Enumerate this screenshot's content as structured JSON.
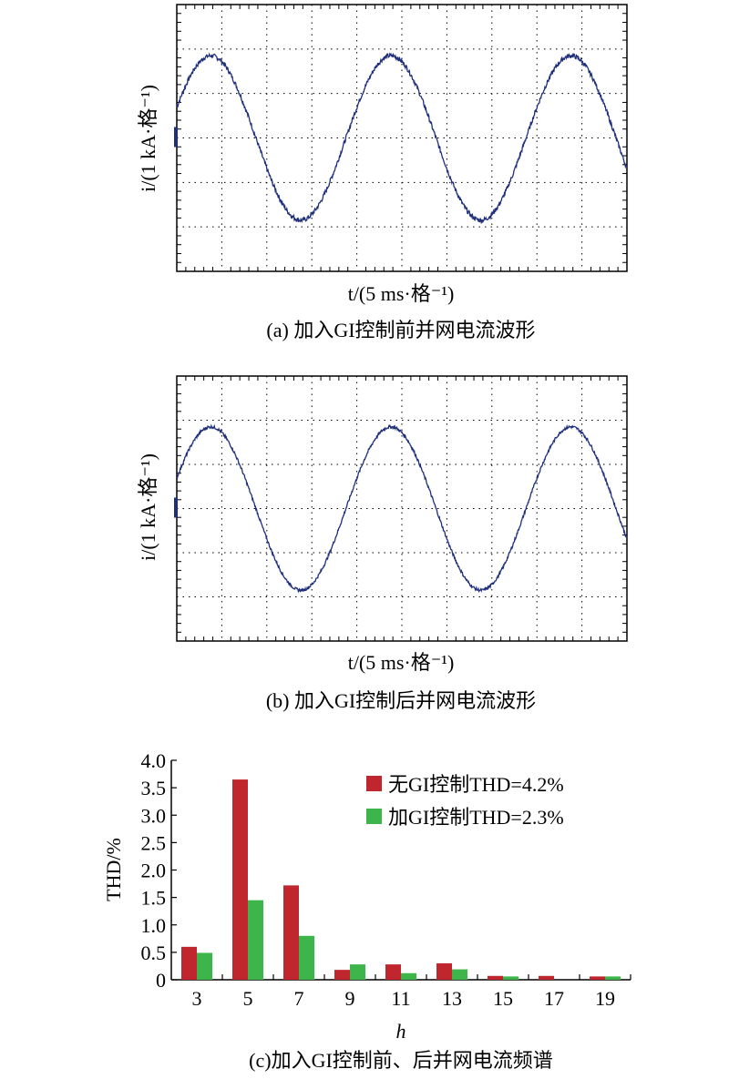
{
  "panels": [
    {
      "id": "a",
      "caption": "(a) 加入GI控制前并网电流波形",
      "xlabel": "t/(5 ms·格⁻¹)",
      "ylabel": "i/(1 kA·格⁻¹)",
      "divisions": {
        "x": 10,
        "y": 6
      },
      "waveform": {
        "cycles": 2.5,
        "amplitude_div": 1.85,
        "noise": "higher"
      },
      "color": "#1f2f7a"
    },
    {
      "id": "b",
      "caption": "(b) 加入GI控制后并网电流波形",
      "xlabel": "t/(5 ms·格⁻¹)",
      "ylabel": "i/(1 kA·格⁻¹)",
      "divisions": {
        "x": 10,
        "y": 6
      },
      "waveform": {
        "cycles": 2.5,
        "amplitude_div": 1.85,
        "noise": "lower"
      },
      "color": "#1f2f7a"
    }
  ],
  "chart_data": [
    {
      "type": "line",
      "xlabel": "t/(5 ms·格⁻¹)",
      "ylabel": "i/(1 kA·格⁻¹)",
      "caption": "(a) 加入GI控制前并网电流波形",
      "grid": true,
      "series": [
        {
          "values_description": "sinusoid, 2.5 cycles across 10 divisions, peak ≈ 1.85 div, visible ripple"
        }
      ]
    },
    {
      "type": "line",
      "xlabel": "t/(5 ms·格⁻¹)",
      "ylabel": "i/(1 kA·格⁻¹)",
      "caption": "(b) 加入GI控制后并网电流波形",
      "grid": true,
      "series": [
        {
          "values_description": "sinusoid, 2.5 cycles across 10 divisions, peak ≈ 1.85 div, reduced ripple"
        }
      ]
    },
    {
      "type": "bar",
      "categories": [
        "3",
        "5",
        "7",
        "9",
        "11",
        "13",
        "15",
        "17",
        "19"
      ],
      "series": [
        {
          "name": "无GI控制THD=4.2%",
          "color": "#c0262d",
          "values": [
            0.6,
            3.65,
            1.72,
            0.18,
            0.28,
            0.3,
            0.07,
            0.07,
            0.06
          ]
        },
        {
          "name": "加GI控制THD=2.3%",
          "color": "#3db54a",
          "values": [
            0.49,
            1.45,
            0.8,
            0.28,
            0.12,
            0.19,
            0.06,
            0.0,
            0.06
          ]
        }
      ],
      "xlabel": "h",
      "ylabel": "THD/%",
      "ylim": [
        0,
        4.0
      ],
      "yticks": [
        "0",
        "0.5",
        "1.0",
        "1.5",
        "2.0",
        "2.5",
        "3.0",
        "3.5",
        "4.0"
      ],
      "legend_position": "top-right",
      "caption": "(c)加入GI控制前、后并网电流频谱"
    }
  ]
}
